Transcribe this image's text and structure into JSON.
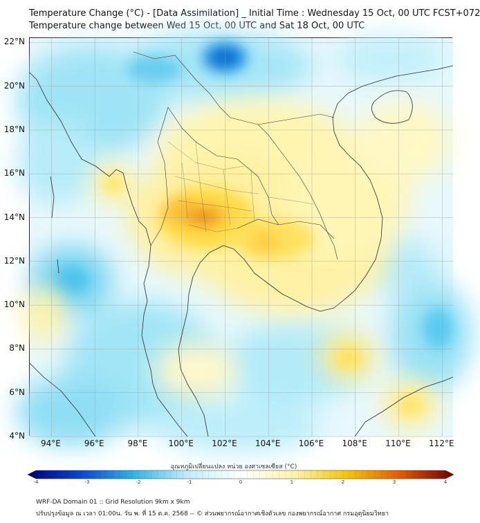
{
  "title_line1": "Temperature Change (°C) - [Data Assimilation] _ Initial Time : Wednesday 15 Oct, 00 UTC FCST+072",
  "title_line2": "Temperature change between Wed 15 Oct, 00 UTC and Sat 18 Oct, 00 UTC",
  "lat_labels": [
    "22°N",
    "20°N",
    "18°N",
    "16°N",
    "14°N",
    "12°N",
    "10°N",
    "8°N",
    "6°N",
    "4°N"
  ],
  "lon_labels": [
    "94°E",
    "96°E",
    "98°E",
    "100°E",
    "102°E",
    "104°E",
    "106°E",
    "108°E",
    "110°E",
    "112°E"
  ],
  "map": {
    "lat_values": [
      22,
      20,
      18,
      16,
      14,
      12,
      10,
      8,
      6,
      4
    ],
    "lon_values": [
      94,
      96,
      98,
      100,
      102,
      104,
      106,
      108,
      110,
      112
    ],
    "lat_range": [
      4,
      22.2
    ],
    "lon_range": [
      93,
      112.5
    ]
  },
  "colorbar": {
    "label": "อุณหภูมิเปลี่ยนแปลง หน่วย องศาเซลเซียส (°C)",
    "ticks": [
      "-4",
      "-3",
      "-2",
      "-1",
      "0",
      "1",
      "2",
      "3",
      "4"
    ],
    "tick_values": [
      -4,
      -3,
      -2,
      -1,
      0,
      1,
      2,
      3,
      4
    ],
    "range": [
      -4,
      4
    ],
    "colors": [
      "#00007a",
      "#0a46d2",
      "#2fb6ec",
      "#bfeefa",
      "#ffffff",
      "#fff4a8",
      "#f7c500",
      "#e35a00",
      "#6e0000"
    ]
  },
  "footer_line1": "WRF-DA Domain 01 :: Grid Resolution 9km x 9km",
  "footer_line2": "ปรับปรุงข้อมูล ณ เวลา 01:00น. วัน พ. ที่ 15 ต.ค. 2568 -- © ส่วนพยากรณ์อากาศเชิงตัวเลข กองพยากรณ์อากาศ กรมอุตุนิยมวิทยา"
}
